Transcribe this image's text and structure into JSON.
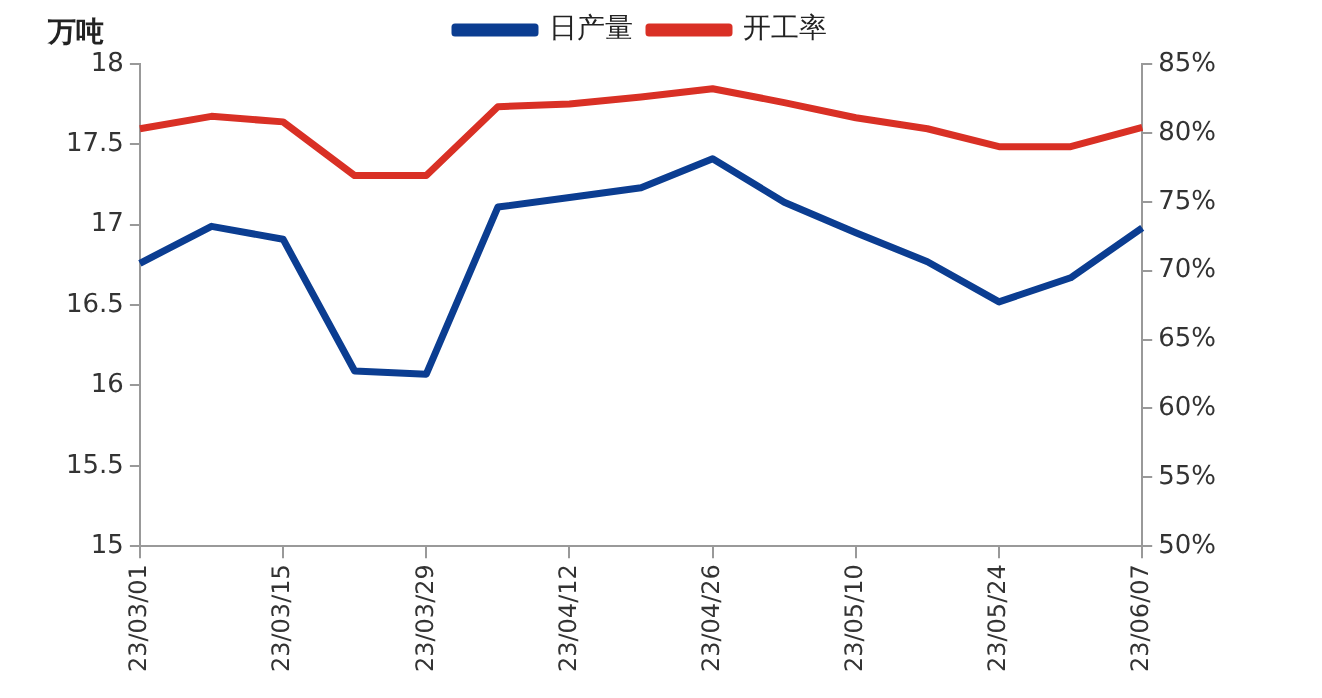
{
  "chart_data": {
    "type": "line",
    "ylabel": "万吨",
    "categories": [
      "23/03/01",
      null,
      "23/03/15",
      null,
      "23/03/29",
      null,
      "23/04/12",
      null,
      "23/04/26",
      null,
      "23/05/10",
      null,
      "23/05/24",
      null,
      "23/06/07"
    ],
    "series": [
      {
        "name": "日产量",
        "color": "#0b3d91",
        "values": [
          16.76,
          16.99,
          16.91,
          16.09,
          16.07,
          17.11,
          17.17,
          17.23,
          17.41,
          17.14,
          16.95,
          16.77,
          16.52,
          16.67,
          16.98
        ]
      },
      {
        "name": "开工率",
        "color": "#d93025",
        "axis": "y2",
        "values": [
          80.3,
          81.2,
          80.8,
          76.9,
          76.9,
          81.9,
          82.1,
          82.6,
          83.2,
          82.2,
          81.1,
          80.3,
          79.0,
          79.0,
          80.4
        ]
      }
    ],
    "ylim": [
      15,
      18
    ],
    "yticks": [
      15,
      15.5,
      16,
      16.5,
      17,
      17.5,
      18
    ],
    "y2lim": [
      50,
      85
    ],
    "y2ticks": [
      {
        "value": 50,
        "label": "50%"
      },
      {
        "value": 55,
        "label": "55%"
      },
      {
        "value": 60,
        "label": "60%"
      },
      {
        "value": 65,
        "label": "65%"
      },
      {
        "value": 70,
        "label": "70%"
      },
      {
        "value": 75,
        "label": "75%"
      },
      {
        "value": 80,
        "label": "80%"
      },
      {
        "value": 85,
        "label": "85%"
      }
    ],
    "grid": false,
    "legend": "top",
    "marker": "none",
    "line_style": "solid"
  }
}
